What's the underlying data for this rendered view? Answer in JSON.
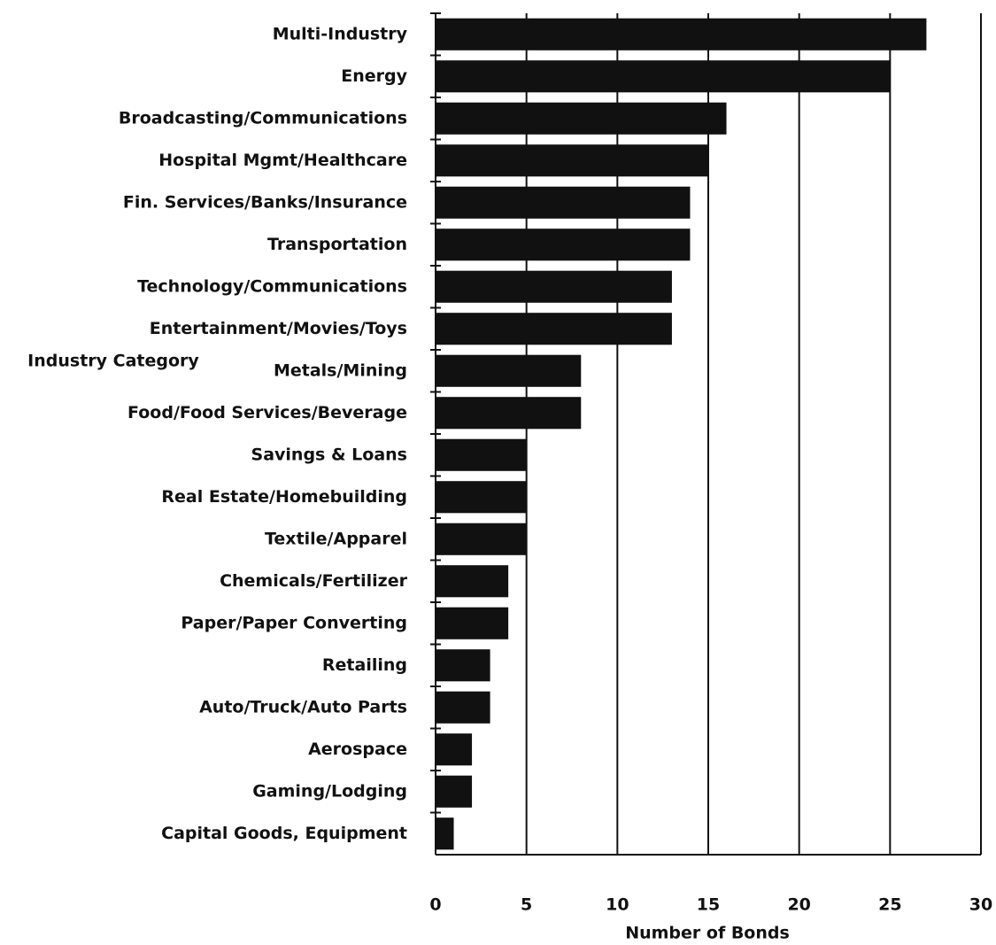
{
  "chart_data": {
    "type": "hbar",
    "y_label": "Industry Category",
    "x_label": "Number of Bonds",
    "categories": [
      "Multi-Industry",
      "Energy",
      "Broadcasting/Communications",
      "Hospital Mgmt/Healthcare",
      "Fin. Services/Banks/Insurance",
      "Transportation",
      "Technology/Communications",
      "Entertainment/Movies/Toys",
      "Metals/Mining",
      "Food/Food Services/Beverage",
      "Savings & Loans",
      "Real Estate/Homebuilding",
      "Textile/Apparel",
      "Chemicals/Fertilizer",
      "Paper/Paper Converting",
      "Retailing",
      "Auto/Truck/Auto Parts",
      "Aerospace",
      "Gaming/Lodging",
      "Capital Goods, Equipment"
    ],
    "values": [
      27,
      25,
      16,
      15,
      14,
      14,
      13,
      13,
      8,
      8,
      5,
      5,
      5,
      4,
      4,
      3,
      3,
      2,
      2,
      1
    ],
    "color": "#111111",
    "xlim": [
      0,
      30
    ],
    "xticks": [
      0,
      5,
      10,
      15,
      20,
      25,
      30
    ],
    "grid": true
  }
}
